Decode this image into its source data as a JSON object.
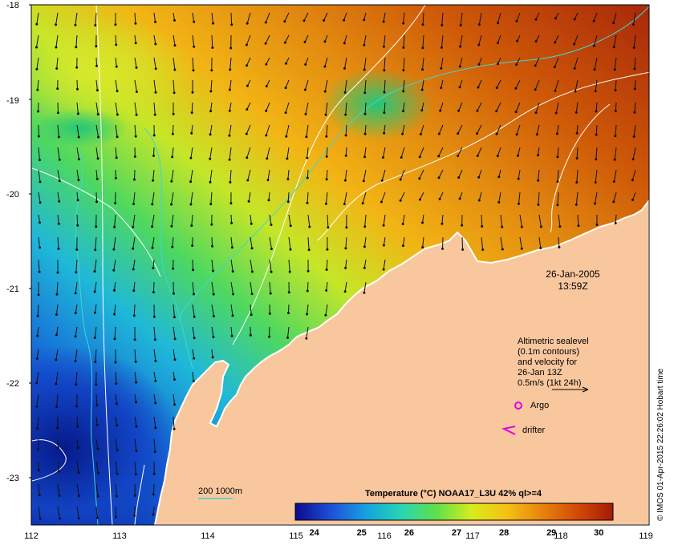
{
  "map": {
    "lon_range": [
      112,
      119
    ],
    "lat_range": [
      -23.5,
      -18
    ],
    "x_ticks": [
      "112",
      "113",
      "114",
      "115",
      "116",
      "117",
      "118",
      "119"
    ],
    "y_ticks": [
      "-18",
      "-19",
      "-20",
      "-21",
      "-22",
      "-23"
    ],
    "land_color": "#f9c79e",
    "contour_color": "#ffffff",
    "isobath_color": "#3fd6d2"
  },
  "datetime": {
    "date": "26-Jan-2005",
    "time": "13:59Z"
  },
  "legend": {
    "altimetry_lines": [
      "Altimetric sealevel",
      "(0.1m contours)",
      "and velocity for",
      "26-Jan 13Z"
    ],
    "scale_label": "0.5m/s (1kt 24h)",
    "argo_label": "Argo",
    "drifter_label": "drifter",
    "argo_color": "#e000e0",
    "drifter_color": "#e000e0",
    "isobath_label": "200  1000m"
  },
  "colorbar": {
    "title": "Temperature (°C) NOAA17_L3U 42% ql>=4",
    "ticks": [
      "24",
      "25",
      "26",
      "27",
      "28",
      "29",
      "30"
    ],
    "range": [
      23.6,
      30.3
    ],
    "colors": [
      "#0a0a8c",
      "#1f4fd8",
      "#16a0e0",
      "#27d6b4",
      "#5ee04a",
      "#d8ec1c",
      "#f5c016",
      "#e8820c",
      "#d24a06",
      "#a61a04"
    ]
  },
  "credit": "© IMOS 01-Apr-2015 22:26:02 Hobart time"
}
